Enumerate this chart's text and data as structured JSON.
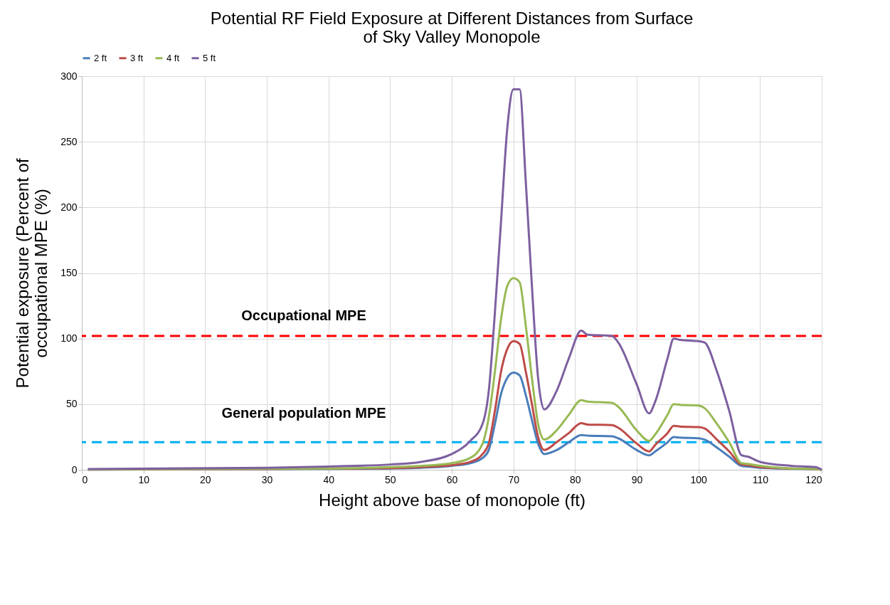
{
  "chart_data": {
    "type": "line",
    "title": "Potential RF Field Exposure at Different Distances from Surface\nof Sky Valley Monopole",
    "xlabel": "Height above base of monopole (ft)",
    "ylabel": "Potential exposure (Percent of\noccupational MPE (%)",
    "x": [
      1,
      30,
      40,
      50,
      55,
      60,
      63,
      65,
      66,
      67,
      68,
      69,
      70,
      71,
      72,
      73,
      74,
      75,
      77,
      79,
      81,
      82,
      86,
      87,
      90,
      92,
      93,
      95,
      96,
      97,
      100,
      101,
      103,
      105,
      107,
      108,
      110,
      115,
      119,
      120
    ],
    "series": [
      {
        "name": "2 ft",
        "color": "#4a7ebb",
        "values": [
          0.1,
          0.5,
          0.7,
          1,
          1.5,
          3,
          5,
          9,
          15,
          35,
          58,
          70,
          74,
          72,
          57,
          38,
          20,
          12,
          15,
          21,
          26.5,
          26,
          25.5,
          24,
          15,
          11,
          14,
          21,
          25,
          24.5,
          24,
          23,
          17,
          10,
          3,
          2.5,
          1.5,
          0.8,
          0.5,
          0
        ]
      },
      {
        "name": "3 ft",
        "color": "#be4b48",
        "values": [
          0.2,
          0.6,
          0.9,
          1.2,
          2,
          3.5,
          6,
          12,
          20,
          45,
          75,
          92,
          98,
          96,
          75,
          50,
          25,
          15,
          21,
          28,
          35.5,
          34.5,
          34,
          32,
          20,
          14,
          19,
          28,
          33.5,
          33,
          32.5,
          31.5,
          23,
          14,
          4,
          3.5,
          2,
          1,
          0.6,
          0
        ]
      },
      {
        "name": "4 ft",
        "color": "#98b954",
        "values": [
          0.3,
          0.8,
          1,
          2,
          3,
          5,
          9,
          20,
          40,
          75,
          115,
          140,
          146,
          143,
          110,
          70,
          35,
          23,
          30,
          42,
          53,
          52,
          51,
          48,
          30,
          22,
          27,
          42,
          50,
          49.5,
          49,
          47,
          35,
          21,
          5,
          4.5,
          3,
          1,
          0.7,
          0
        ]
      },
      {
        "name": "5 ft",
        "color": "#7d60a0",
        "values": [
          0.5,
          1.5,
          2.5,
          4,
          6,
          12,
          22,
          35,
          60,
          120,
          190,
          260,
          290,
          290,
          220,
          140,
          70,
          46,
          60,
          85,
          106,
          103,
          102,
          97,
          65,
          43,
          52,
          85,
          100,
          99,
          98,
          97,
          75,
          45,
          11,
          10,
          6,
          3,
          2,
          0
        ]
      }
    ],
    "xlim": [
      0,
      120
    ],
    "xticks": [
      0,
      10,
      20,
      30,
      40,
      50,
      60,
      70,
      80,
      90,
      100,
      110,
      120
    ],
    "ylim": [
      0,
      300
    ],
    "yticks": [
      0,
      50,
      100,
      150,
      200,
      250,
      300
    ],
    "ref_lines": [
      {
        "axis": "y",
        "value": 102,
        "label": "Occupational MPE",
        "color": "#ff0000",
        "line_style": "dashed"
      },
      {
        "axis": "y",
        "value": 21,
        "label": "General population MPE",
        "color": "#00b0f0",
        "line_style": "dashed"
      }
    ],
    "grid": true,
    "legend": "top",
    "marker": "none",
    "line_style": "solid"
  }
}
